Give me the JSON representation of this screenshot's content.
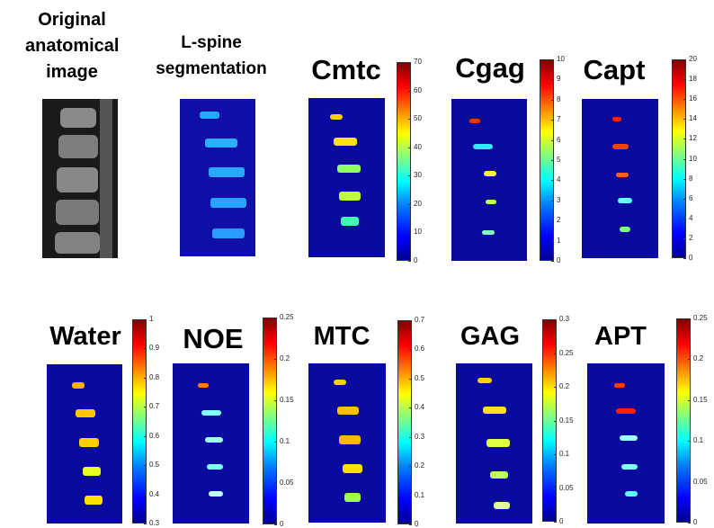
{
  "panels": {
    "anatomical": {
      "title_lines": [
        "Original",
        "anatomical",
        "image"
      ]
    },
    "segmentation": {
      "title_lines": [
        "L-spine",
        "segmentation"
      ]
    },
    "cmtc": {
      "title": "Cmtc",
      "ticks": [
        "70",
        "60",
        "50",
        "40",
        "30",
        "20",
        "10",
        "0"
      ]
    },
    "cgag": {
      "title": "Cgag",
      "ticks": [
        "10",
        "9",
        "8",
        "7",
        "6",
        "5",
        "4",
        "3",
        "2",
        "1",
        "0"
      ]
    },
    "capt": {
      "title": "Capt",
      "ticks": [
        "20",
        "18",
        "16",
        "14",
        "12",
        "10",
        "8",
        "6",
        "4",
        "2",
        "0"
      ]
    },
    "water": {
      "title": "Water",
      "ticks": [
        "1",
        "0.9",
        "0.8",
        "0.7",
        "0.6",
        "0.5",
        "0.4",
        "0.3"
      ]
    },
    "noe": {
      "title": "NOE",
      "ticks": [
        "0.25",
        "0.2",
        "0.15",
        "0.1",
        "0.05",
        "0"
      ]
    },
    "mtc": {
      "title": "MTC",
      "ticks": [
        "0.7",
        "0.6",
        "0.5",
        "0.4",
        "0.3",
        "0.2",
        "0.1",
        "0"
      ]
    },
    "gag": {
      "title": "GAG",
      "ticks": [
        "0.3",
        "0.25",
        "0.2",
        "0.15",
        "0.1",
        "0.05",
        "0"
      ]
    },
    "apt": {
      "title": "APT",
      "ticks": [
        "0.25",
        "0.2",
        "0.15",
        "0.1",
        "0.05",
        "0"
      ]
    }
  },
  "colors": {
    "map_background": "#0a0a9e"
  }
}
